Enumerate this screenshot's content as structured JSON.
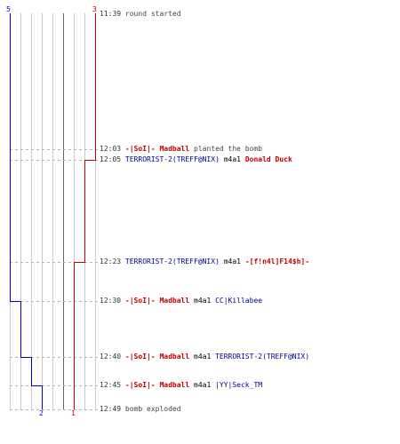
{
  "colors": {
    "team_blue": "#0000cc",
    "team_red": "#cc0000",
    "player_red": "#c00000",
    "player_blue": "#00008b",
    "grid": "#c8c8c8",
    "guide": "#b4b4b4"
  },
  "team_counts": {
    "blue_start": "5",
    "red_start": "3",
    "blue_end": "2",
    "red_end": "1"
  },
  "events": [
    {
      "time": "11:39",
      "msg": "round started"
    },
    {
      "time": "12:03",
      "player": "-|SoI|- Madball",
      "msg": "planted the bomb"
    },
    {
      "time": "12:05",
      "killer": "TERRORIST-2(TREFF@NIX)",
      "weapon": "m4a1",
      "victim": "Donald Duck"
    },
    {
      "time": "12:23",
      "killer": "TERRORIST-2(TREFF@NIX)",
      "weapon": "m4a1",
      "victim": "-[f!n4l]F14$h]-"
    },
    {
      "time": "12:30",
      "killer": "-|SoI|- Madball",
      "weapon": "m4a1",
      "victim": "CC|Killabee"
    },
    {
      "time": "12:40",
      "killer": "-|SoI|- Madball",
      "weapon": "m4a1",
      "victim": "TERRORIST-2(TREFF@NIX)"
    },
    {
      "time": "12:45",
      "killer": "-|SoI|- Madball",
      "weapon": "m4a1",
      "victim": "|YY|Seck_TM"
    },
    {
      "time": "12:49",
      "msg": "bomb exploded"
    }
  ]
}
